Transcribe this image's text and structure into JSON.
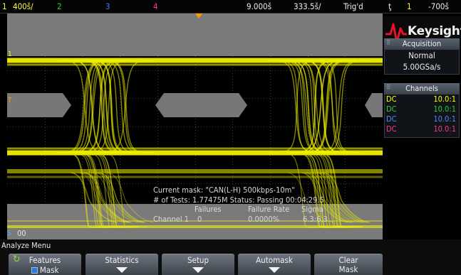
{
  "topbar": {
    "ch1_num": "1",
    "ch1_scale": "400š/",
    "ch2_num": "2",
    "ch3_num": "3",
    "ch4_num": "4",
    "time_delay": "9.000š",
    "time_scale": "333.5š/",
    "trig_status": "Trig'd",
    "trig_icon": "ƫ",
    "trig_src": "1",
    "trig_level": "-700š"
  },
  "screen": {
    "ch1_marker": "1",
    "trig_marker": "T",
    "s1_label": "S",
    "s1_value": "00"
  },
  "mask_info": {
    "line1": "Current mask: \"CAN(L-H) 500kbps-10m\"",
    "line2": "# of Tests: 1.77475M  Status: Passing  00:04:29.5",
    "hdr_failures": "Failures",
    "hdr_rate": "Failure Rate",
    "hdr_sigma": "Sigma",
    "ch_label": "Channel 1",
    "failures": "0",
    "rate": "0.0000%",
    "sigma": "6.3:6.3"
  },
  "side": {
    "brand": "Keysight",
    "acq_title": "Acquisition",
    "acq_mode": "Normal",
    "acq_rate": "5.00GSa/s",
    "ch_title": "Channels",
    "channels": [
      {
        "coupling": "DC",
        "probe": "10.0:1"
      },
      {
        "coupling": "DC",
        "probe": "10.0:1"
      },
      {
        "coupling": "DC",
        "probe": "10.0:1"
      },
      {
        "coupling": "DC",
        "probe": "10.0:1"
      }
    ]
  },
  "menu": {
    "title": "Analyze Menu",
    "features_label": "Features",
    "features_value": "Mask",
    "statistics_label": "Statistics",
    "setup_label": "Setup",
    "automask_label": "Automask",
    "clear_l1": "Clear",
    "clear_l2": "Mask"
  },
  "colors": {
    "ch1": "#ffff00",
    "ch2": "#33cc33",
    "ch3": "#3a7fff",
    "ch4": "#ff3399",
    "trig": "#ff9900",
    "panel_header": "#4a535d"
  },
  "icons": {
    "trig_edge": "rising-edge-icon",
    "brand_logo": "keysight-wave-icon",
    "features_key": "rotate-knob-icon",
    "mask_checkbox": "checkbox-icon"
  }
}
